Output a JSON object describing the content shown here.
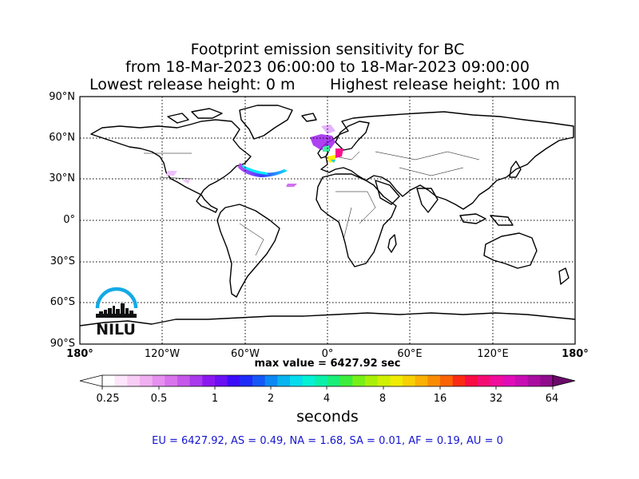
{
  "title": {
    "line1": "Footprint emission sensitivity for BC",
    "line2": "from 18-Mar-2023 06:00:00 to 18-Mar-2023 09:00:00",
    "line3_left": "Lowest release height: 0 m",
    "line3_right": "Highest release height: 100 m"
  },
  "map": {
    "lat_labels": [
      "90°N",
      "60°N",
      "30°N",
      "0°",
      "30°S",
      "60°S",
      "90°S"
    ],
    "lon_labels": [
      "180°",
      "120°W",
      "60°W",
      "0°",
      "60°E",
      "120°E",
      "180°"
    ],
    "gridline_style": "dotted",
    "projection": "equirectangular",
    "logo": "NILU"
  },
  "max_value": "max value = 6427.92 sec",
  "colorbar": {
    "ticks": [
      "0.25",
      "0.5",
      "1",
      "2",
      "4",
      "8",
      "16",
      "32",
      "64"
    ],
    "label": "seconds",
    "extend": "both"
  },
  "footer": "EU = 6427.92,  AS = 0.49,  NA = 1.68,  SA = 0.01,  AF = 0.19,  AU = 0"
}
